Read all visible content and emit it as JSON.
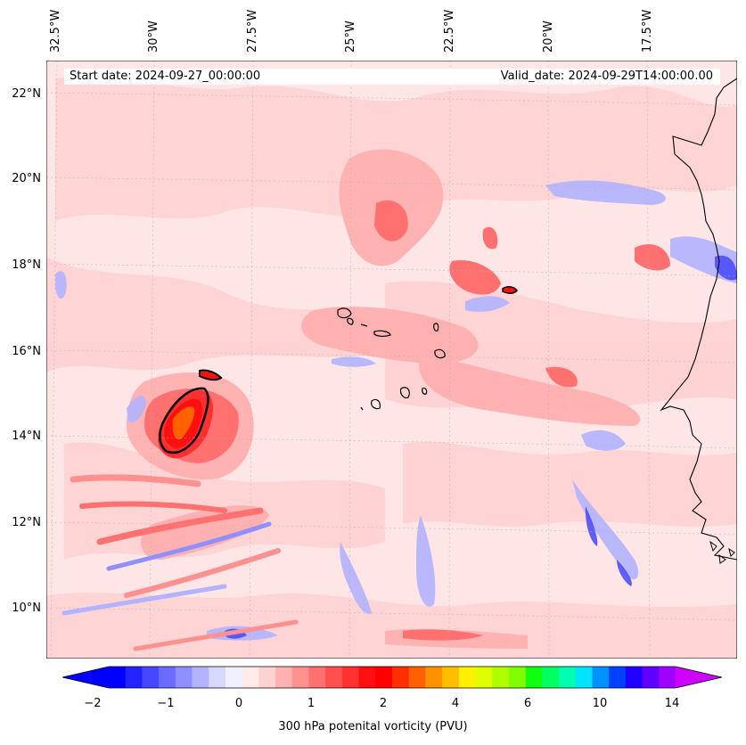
{
  "header": {
    "start_date": "Start date: 2024-09-27_00:00:00",
    "valid_date": "Valid_date: 2024-09-29T14:00:00.00"
  },
  "axes": {
    "lon_labels": [
      "32.5°W",
      "30°W",
      "27.5°W",
      "25°W",
      "22.5°W",
      "20°W",
      "17.5°W"
    ],
    "lat_labels": [
      "22°N",
      "20°N",
      "18°N",
      "16°N",
      "14°N",
      "12°N",
      "10°N"
    ]
  },
  "colorbar": {
    "ticks": [
      "−2",
      "−1",
      "0",
      "1",
      "2",
      "4",
      "6",
      "10",
      "14"
    ],
    "title": "300 hPa potenital vorticity (PVU)",
    "colors": [
      "#0000ff",
      "#2323ff",
      "#4747ff",
      "#6b6bff",
      "#8f8fff",
      "#b3b3ff",
      "#d7d7ff",
      "#f0f0ff",
      "#ffeaea",
      "#ffd2d2",
      "#ffb0b0",
      "#ff9090",
      "#ff7070",
      "#ff5050",
      "#ff3030",
      "#ff1010",
      "#ff0000",
      "#ff3000",
      "#ff6000",
      "#ff9000",
      "#ffbf00",
      "#ffef00",
      "#dfff00",
      "#afff00",
      "#7fff00",
      "#10ff10",
      "#00ff60",
      "#00ffb0",
      "#00e5ff",
      "#0090ff",
      "#0040ff",
      "#2000ff",
      "#6000ff",
      "#a000ff"
    ],
    "under_color": "#0000ff",
    "over_color": "#d000ff"
  },
  "map": {
    "background_color": "#ffe6e6",
    "coastline_color": "#000000",
    "gridline_color": "#b0b0b0"
  }
}
